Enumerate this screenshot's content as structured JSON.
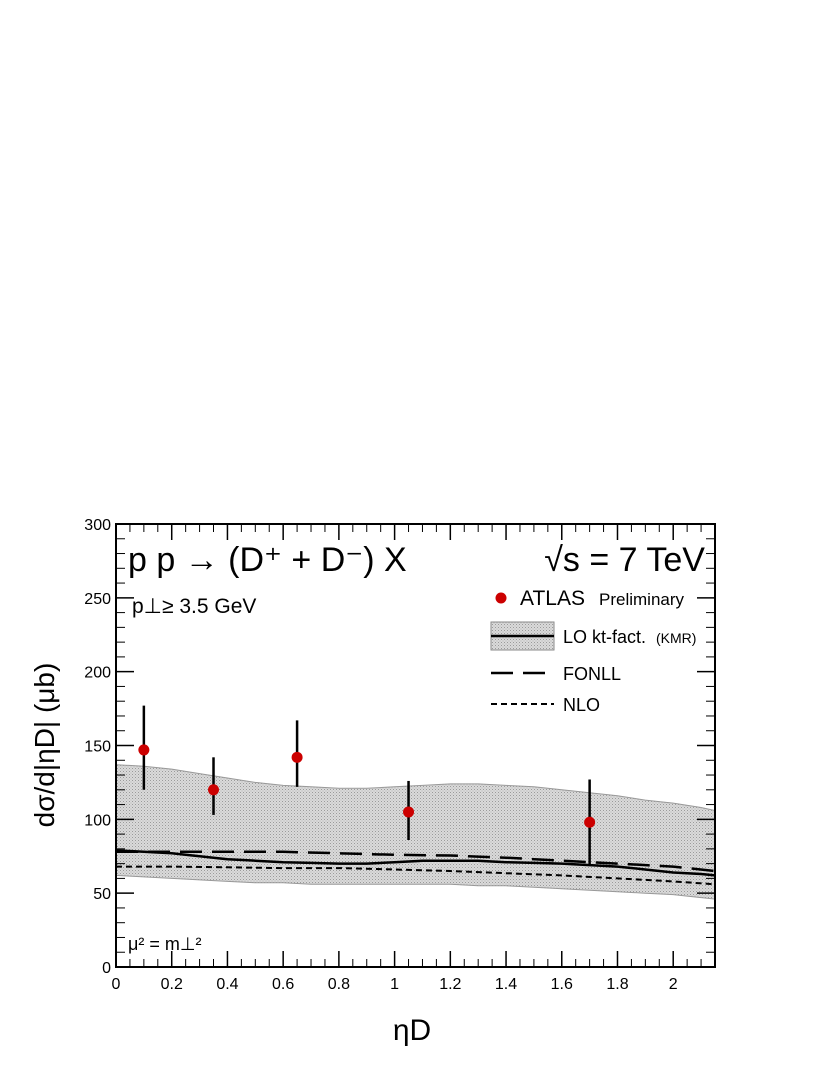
{
  "chart_data": {
    "type": "scatter",
    "title": "p p → (D⁺ + D⁻) X",
    "energy_label": "√s = 7 TeV",
    "cut_label": "p⊥≥ 3.5 GeV",
    "scale_label": "μ² = m⊥²",
    "xlabel": "ηD",
    "ylabel": "dσ/d|ηD|     (μb)",
    "xlim": [
      0,
      2.15
    ],
    "ylim": [
      0,
      300
    ],
    "grid": false,
    "legend_position": "top-right",
    "x_ticks": [
      0,
      0.2,
      0.4,
      0.6,
      0.8,
      1,
      1.2,
      1.4,
      1.6,
      1.8,
      2
    ],
    "x_tick_labels": [
      "0",
      "0.2",
      "0.4",
      "0.6",
      "0.8",
      "1",
      "1.2",
      "1.4",
      "1.6",
      "1.8",
      "2"
    ],
    "y_ticks": [
      0,
      50,
      100,
      150,
      200,
      250,
      300
    ],
    "y_tick_labels": [
      "0",
      "50",
      "100",
      "150",
      "200",
      "250",
      "300"
    ],
    "legend": [
      {
        "label": "ATLAS",
        "sublabel": "Preliminary"
      },
      {
        "label": "LO kt-fact.",
        "sublabel": "(KMR)"
      },
      {
        "label": "FONLL",
        "sublabel": ""
      },
      {
        "label": "NLO",
        "sublabel": ""
      }
    ],
    "data_points": {
      "name": "ATLAS",
      "color": "#cc0000",
      "x": [
        0.1,
        0.35,
        0.65,
        1.05,
        1.7
      ],
      "y": [
        147,
        120,
        142,
        105,
        98
      ],
      "err_up": [
        30,
        22,
        25,
        21,
        29
      ],
      "err_down": [
        27,
        17,
        20,
        19,
        29
      ]
    },
    "band": {
      "name": "LO kt-fact. (KMR)",
      "color": "#c4c4c4",
      "x": [
        0,
        0.1,
        0.2,
        0.3,
        0.4,
        0.5,
        0.6,
        0.7,
        0.8,
        0.9,
        1.0,
        1.1,
        1.2,
        1.3,
        1.4,
        1.5,
        1.6,
        1.7,
        1.8,
        1.9,
        2.0,
        2.1,
        2.15
      ],
      "upper": [
        137,
        136,
        134,
        131,
        128,
        125,
        123,
        122,
        121,
        121,
        122,
        123,
        124,
        124,
        123,
        122,
        120,
        118,
        116,
        113,
        111,
        108,
        106
      ],
      "lower": [
        62,
        61,
        60,
        59,
        58,
        57,
        57,
        56,
        56,
        56,
        56,
        56,
        56,
        55,
        55,
        54,
        53,
        52,
        51,
        50,
        49,
        47,
        46
      ]
    },
    "series": [
      {
        "name": "LO kt-fact.",
        "style": "solid",
        "x": [
          0,
          0.1,
          0.2,
          0.3,
          0.4,
          0.5,
          0.6,
          0.7,
          0.8,
          0.9,
          1.0,
          1.1,
          1.2,
          1.3,
          1.4,
          1.5,
          1.6,
          1.7,
          1.8,
          1.9,
          2.0,
          2.1,
          2.15
        ],
        "y": [
          79,
          78,
          77,
          75,
          73,
          72,
          71,
          70.5,
          70,
          70,
          71,
          72,
          72,
          72,
          71,
          70.5,
          70,
          69,
          68,
          66,
          64,
          63,
          62
        ]
      },
      {
        "name": "FONLL",
        "style": "dashed",
        "x": [
          0,
          0.2,
          0.4,
          0.6,
          0.8,
          1.0,
          1.2,
          1.4,
          1.6,
          1.8,
          2.0,
          2.15
        ],
        "y": [
          78,
          78,
          78,
          78,
          77,
          76,
          75.5,
          74,
          72,
          70,
          68,
          65
        ]
      },
      {
        "name": "NLO",
        "style": "dotted",
        "x": [
          0,
          0.2,
          0.4,
          0.6,
          0.8,
          1.0,
          1.2,
          1.4,
          1.6,
          1.8,
          2.0,
          2.15
        ],
        "y": [
          68,
          68,
          67.5,
          67,
          67,
          66,
          65,
          63.5,
          62,
          60,
          58,
          56
        ]
      }
    ]
  }
}
